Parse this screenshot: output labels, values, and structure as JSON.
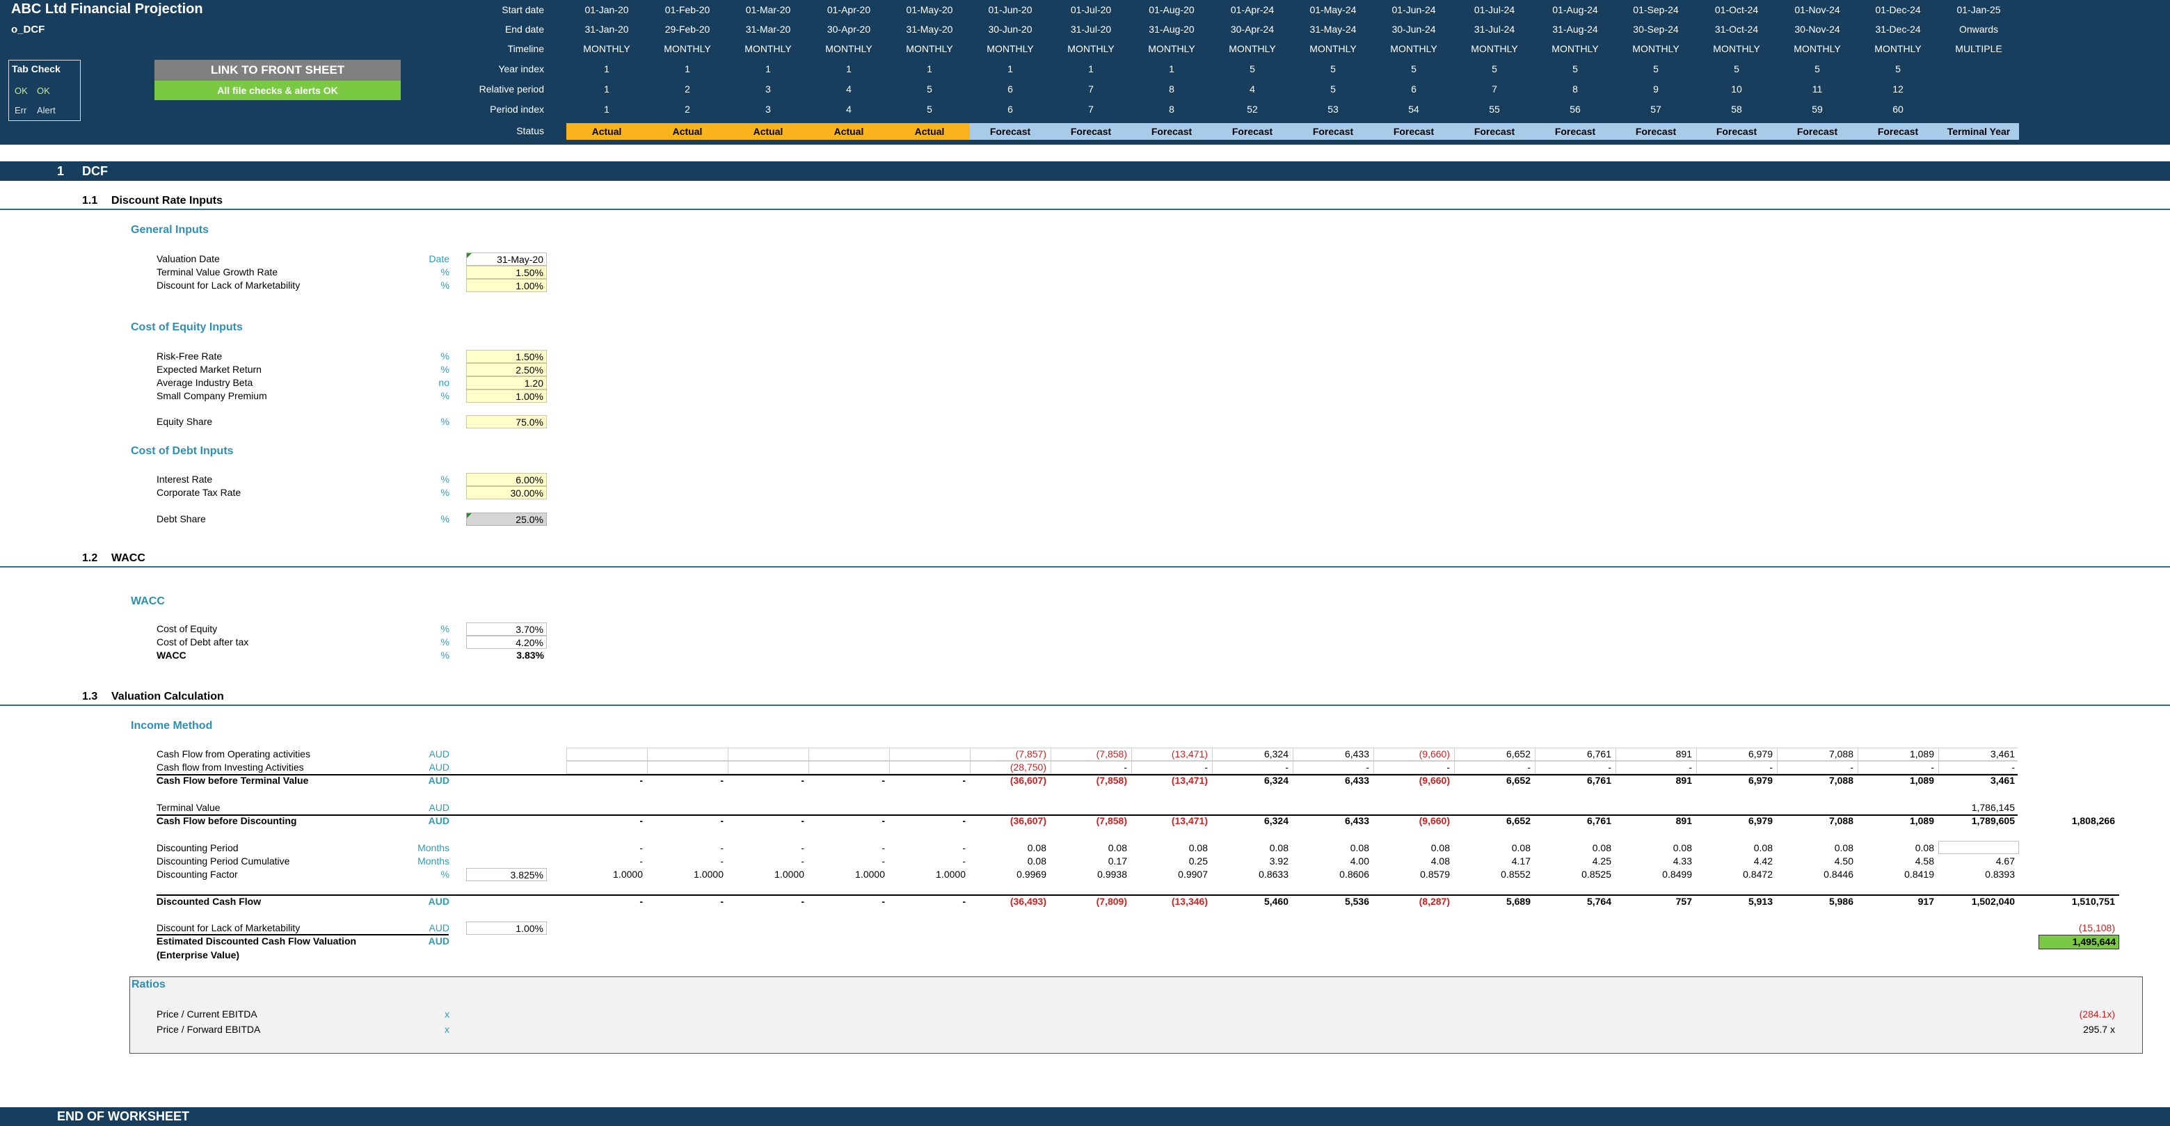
{
  "header": {
    "title": "ABC Ltd Financial Projection",
    "sheet_name": "o_DCF",
    "row_labels": [
      "Start date",
      "End date",
      "Timeline",
      "Year index",
      "Relative period",
      "Period index",
      "Status"
    ],
    "columns": [
      {
        "start": "01-Jan-20",
        "end": "31-Jan-20",
        "timeline": "MONTHLY",
        "year": "1",
        "rel": "1",
        "period": "1",
        "status": "Actual"
      },
      {
        "start": "01-Feb-20",
        "end": "29-Feb-20",
        "timeline": "MONTHLY",
        "year": "1",
        "rel": "2",
        "period": "2",
        "status": "Actual"
      },
      {
        "start": "01-Mar-20",
        "end": "31-Mar-20",
        "timeline": "MONTHLY",
        "year": "1",
        "rel": "3",
        "period": "3",
        "status": "Actual"
      },
      {
        "start": "01-Apr-20",
        "end": "30-Apr-20",
        "timeline": "MONTHLY",
        "year": "1",
        "rel": "4",
        "period": "4",
        "status": "Actual"
      },
      {
        "start": "01-May-20",
        "end": "31-May-20",
        "timeline": "MONTHLY",
        "year": "1",
        "rel": "5",
        "period": "5",
        "status": "Actual"
      },
      {
        "start": "01-Jun-20",
        "end": "30-Jun-20",
        "timeline": "MONTHLY",
        "year": "1",
        "rel": "6",
        "period": "6",
        "status": "Forecast"
      },
      {
        "start": "01-Jul-20",
        "end": "31-Jul-20",
        "timeline": "MONTHLY",
        "year": "1",
        "rel": "7",
        "period": "7",
        "status": "Forecast"
      },
      {
        "start": "01-Aug-20",
        "end": "31-Aug-20",
        "timeline": "MONTHLY",
        "year": "1",
        "rel": "8",
        "period": "8",
        "status": "Forecast"
      },
      {
        "start": "01-Apr-24",
        "end": "30-Apr-24",
        "timeline": "MONTHLY",
        "year": "5",
        "rel": "4",
        "period": "52",
        "status": "Forecast"
      },
      {
        "start": "01-May-24",
        "end": "31-May-24",
        "timeline": "MONTHLY",
        "year": "5",
        "rel": "5",
        "period": "53",
        "status": "Forecast"
      },
      {
        "start": "01-Jun-24",
        "end": "30-Jun-24",
        "timeline": "MONTHLY",
        "year": "5",
        "rel": "6",
        "period": "54",
        "status": "Forecast"
      },
      {
        "start": "01-Jul-24",
        "end": "31-Jul-24",
        "timeline": "MONTHLY",
        "year": "5",
        "rel": "7",
        "period": "55",
        "status": "Forecast"
      },
      {
        "start": "01-Aug-24",
        "end": "31-Aug-24",
        "timeline": "MONTHLY",
        "year": "5",
        "rel": "8",
        "period": "56",
        "status": "Forecast"
      },
      {
        "start": "01-Sep-24",
        "end": "30-Sep-24",
        "timeline": "MONTHLY",
        "year": "5",
        "rel": "9",
        "period": "57",
        "status": "Forecast"
      },
      {
        "start": "01-Oct-24",
        "end": "31-Oct-24",
        "timeline": "MONTHLY",
        "year": "5",
        "rel": "10",
        "period": "58",
        "status": "Forecast"
      },
      {
        "start": "01-Nov-24",
        "end": "30-Nov-24",
        "timeline": "MONTHLY",
        "year": "5",
        "rel": "11",
        "period": "59",
        "status": "Forecast"
      },
      {
        "start": "01-Dec-24",
        "end": "31-Dec-24",
        "timeline": "MONTHLY",
        "year": "5",
        "rel": "12",
        "period": "60",
        "status": "Forecast"
      },
      {
        "start": "01-Jan-25",
        "end": "Onwards",
        "timeline": "MULTIPLE",
        "year": "",
        "rel": "",
        "period": "",
        "status": "Terminal Year"
      }
    ],
    "tab_check": {
      "title": "Tab Check",
      "ok1": "OK",
      "ok2": "OK",
      "err": "Err",
      "alert": "Alert"
    },
    "link_button": "LINK TO FRONT SHEET",
    "checks_badge": "All file checks & alerts OK"
  },
  "sections": {
    "s1": {
      "num": "1",
      "title": "DCF"
    },
    "s11": {
      "num": "1.1",
      "title": "Discount Rate Inputs"
    },
    "s12": {
      "num": "1.2",
      "title": "WACC"
    },
    "s13": {
      "num": "1.3",
      "title": "Valuation Calculation"
    }
  },
  "general_inputs": {
    "heading": "General Inputs",
    "rows": [
      {
        "label": "Valuation Date",
        "unit": "Date",
        "value": "31-May-20"
      },
      {
        "label": "Terminal Value Growth Rate",
        "unit": "%",
        "value": "1.50%"
      },
      {
        "label": "Discount for Lack of Marketability",
        "unit": "%",
        "value": "1.00%"
      }
    ]
  },
  "cost_of_equity": {
    "heading": "Cost of Equity Inputs",
    "rows": [
      {
        "label": "Risk-Free Rate",
        "unit": "%",
        "value": "1.50%"
      },
      {
        "label": "Expected Market Return",
        "unit": "%",
        "value": "2.50%"
      },
      {
        "label": "Average Industry Beta",
        "unit": "no",
        "value": "1.20"
      },
      {
        "label": "Small Company Premium",
        "unit": "%",
        "value": "1.00%"
      }
    ],
    "equity_share": {
      "label": "Equity Share",
      "unit": "%",
      "value": "75.0%"
    }
  },
  "cost_of_debt": {
    "heading": "Cost of Debt Inputs",
    "rows": [
      {
        "label": "Interest Rate",
        "unit": "%",
        "value": "6.00%"
      },
      {
        "label": "Corporate Tax Rate",
        "unit": "%",
        "value": "30.00%"
      }
    ],
    "debt_share": {
      "label": "Debt Share",
      "unit": "%",
      "value": "25.0%"
    }
  },
  "wacc": {
    "heading": "WACC",
    "rows": [
      {
        "label": "Cost of Equity",
        "unit": "%",
        "value": "3.70%"
      },
      {
        "label": "Cost of Debt after tax",
        "unit": "%",
        "value": "4.20%"
      },
      {
        "label": "WACC",
        "unit": "%",
        "value": "3.83%"
      }
    ]
  },
  "income_method": {
    "heading": "Income Method",
    "cf_ops": {
      "label": "Cash Flow from Operating activities",
      "unit": "AUD",
      "values": [
        "",
        "",
        "",
        "",
        "",
        "(7,857)",
        "(7,858)",
        "(13,471)",
        "6,324",
        "6,433",
        "(9,660)",
        "6,652",
        "6,761",
        "891",
        "6,979",
        "7,088",
        "1,089",
        "3,461"
      ]
    },
    "cf_inv": {
      "label": "Cash flow from Investing Activities",
      "unit": "AUD",
      "values": [
        "",
        "",
        "",
        "",
        "",
        "(28,750)",
        "-",
        "-",
        "-",
        "-",
        "-",
        "-",
        "-",
        "-",
        "-",
        "-",
        "-",
        "-"
      ]
    },
    "cf_before_tv": {
      "label": "Cash Flow before Terminal Value",
      "unit": "AUD",
      "values": [
        "-",
        "-",
        "-",
        "-",
        "-",
        "(36,607)",
        "(7,858)",
        "(13,471)",
        "6,324",
        "6,433",
        "(9,660)",
        "6,652",
        "6,761",
        "891",
        "6,979",
        "7,088",
        "1,089",
        "3,461"
      ]
    },
    "terminal_value": {
      "label": "Terminal Value",
      "unit": "AUD",
      "value": "1,786,145"
    },
    "cf_before_disc": {
      "label": "Cash Flow before Discounting",
      "unit": "AUD",
      "values": [
        "-",
        "-",
        "-",
        "-",
        "-",
        "(36,607)",
        "(7,858)",
        "(13,471)",
        "6,324",
        "6,433",
        "(9,660)",
        "6,652",
        "6,761",
        "891",
        "6,979",
        "7,088",
        "1,089",
        "1,789,605"
      ],
      "total": "1,808,266"
    },
    "disc_period": {
      "label": "Discounting Period",
      "unit": "Months",
      "values": [
        "-",
        "-",
        "-",
        "-",
        "-",
        "0.08",
        "0.08",
        "0.08",
        "0.08",
        "0.08",
        "0.08",
        "0.08",
        "0.08",
        "0.08",
        "0.08",
        "0.08",
        "0.08",
        "0.08"
      ]
    },
    "disc_cum": {
      "label": "Discounting Period Cumulative",
      "unit": "Months",
      "values": [
        "-",
        "-",
        "-",
        "-",
        "-",
        "0.08",
        "0.17",
        "0.25",
        "3.92",
        "4.00",
        "4.08",
        "4.17",
        "4.25",
        "4.33",
        "4.42",
        "4.50",
        "4.58",
        "4.67"
      ]
    },
    "disc_factor": {
      "label": "Discounting Factor",
      "unit": "%",
      "rate": "3.825%",
      "values": [
        "1.0000",
        "1.0000",
        "1.0000",
        "1.0000",
        "1.0000",
        "0.9969",
        "0.9938",
        "0.9907",
        "0.8633",
        "0.8606",
        "0.8579",
        "0.8552",
        "0.8525",
        "0.8499",
        "0.8472",
        "0.8446",
        "0.8419",
        "0.8393"
      ]
    },
    "discounted_cf": {
      "label": "Discounted Cash Flow",
      "unit": "AUD",
      "values": [
        "-",
        "-",
        "-",
        "-",
        "-",
        "(36,493)",
        "(7,809)",
        "(13,346)",
        "5,460",
        "5,536",
        "(8,287)",
        "5,689",
        "5,764",
        "757",
        "5,913",
        "5,986",
        "917",
        "1,502,040"
      ],
      "total": "1,510,751"
    },
    "dlom": {
      "label": "Discount for Lack of Marketability",
      "unit": "AUD",
      "rate": "1.00%",
      "total": "(15,108)"
    },
    "ev": {
      "label": "Estimated Discounted Cash Flow Valuation",
      "label2": "(Enterprise Value)",
      "unit": "AUD",
      "total": "1,495,644"
    }
  },
  "ratios": {
    "heading": "Ratios",
    "rows": [
      {
        "label": "Price / Current EBITDA",
        "unit": "x",
        "value": "(284.1x)"
      },
      {
        "label": "Price / Forward EBITDA",
        "unit": "x",
        "value": "295.7 x"
      }
    ]
  },
  "footer": {
    "title": "END OF WORKSHEET"
  }
}
